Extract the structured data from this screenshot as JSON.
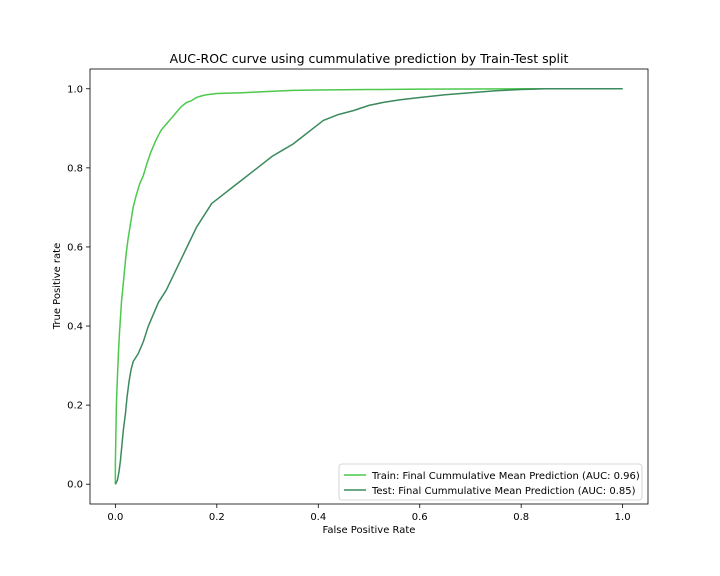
{
  "chart_data": {
    "type": "line",
    "title": "AUC-ROC curve using cummulative prediction by Train-Test split",
    "xlabel": "False Positive Rate",
    "ylabel": "True Positive rate",
    "xlim": [
      -0.05,
      1.05
    ],
    "ylim": [
      -0.05,
      1.05
    ],
    "xticks": [
      0.0,
      0.2,
      0.4,
      0.6,
      0.8,
      1.0
    ],
    "yticks": [
      0.0,
      0.2,
      0.4,
      0.6,
      0.8,
      1.0
    ],
    "xtick_labels": [
      "0.0",
      "0.2",
      "0.4",
      "0.6",
      "0.8",
      "1.0"
    ],
    "ytick_labels": [
      "0.0",
      "0.2",
      "0.4",
      "0.6",
      "0.8",
      "1.0"
    ],
    "grid": false,
    "legend_position": "lower-right",
    "series": [
      {
        "name": "Train: Final Cummulative Mean Prediction (AUC: 0.96)",
        "color": "#4cc94c",
        "points": [
          [
            0.0,
            0.0
          ],
          [
            0.0,
            0.05
          ],
          [
            0.002,
            0.2
          ],
          [
            0.004,
            0.27
          ],
          [
            0.006,
            0.33
          ],
          [
            0.008,
            0.38
          ],
          [
            0.01,
            0.42
          ],
          [
            0.012,
            0.46
          ],
          [
            0.015,
            0.5
          ],
          [
            0.018,
            0.54
          ],
          [
            0.021,
            0.58
          ],
          [
            0.025,
            0.62
          ],
          [
            0.03,
            0.66
          ],
          [
            0.035,
            0.7
          ],
          [
            0.041,
            0.73
          ],
          [
            0.048,
            0.76
          ],
          [
            0.055,
            0.78
          ],
          [
            0.062,
            0.81
          ],
          [
            0.07,
            0.84
          ],
          [
            0.08,
            0.87
          ],
          [
            0.09,
            0.895
          ],
          [
            0.1,
            0.91
          ],
          [
            0.11,
            0.925
          ],
          [
            0.12,
            0.94
          ],
          [
            0.13,
            0.955
          ],
          [
            0.14,
            0.965
          ],
          [
            0.15,
            0.97
          ],
          [
            0.16,
            0.978
          ],
          [
            0.17,
            0.982
          ],
          [
            0.18,
            0.985
          ],
          [
            0.2,
            0.988
          ],
          [
            0.25,
            0.99
          ],
          [
            0.3,
            0.993
          ],
          [
            0.35,
            0.996
          ],
          [
            0.4,
            0.997
          ],
          [
            0.5,
            0.998
          ],
          [
            0.6,
            0.999
          ],
          [
            0.8,
            1.0
          ],
          [
            1.0,
            1.0
          ]
        ]
      },
      {
        "name": "Test: Final Cummulative Mean Prediction (AUC: 0.85)",
        "color": "#3b8a5e",
        "points": [
          [
            0.0,
            0.0
          ],
          [
            0.004,
            0.01
          ],
          [
            0.007,
            0.03
          ],
          [
            0.01,
            0.06
          ],
          [
            0.013,
            0.1
          ],
          [
            0.016,
            0.14
          ],
          [
            0.02,
            0.18
          ],
          [
            0.023,
            0.22
          ],
          [
            0.027,
            0.26
          ],
          [
            0.031,
            0.29
          ],
          [
            0.035,
            0.31
          ],
          [
            0.045,
            0.33
          ],
          [
            0.055,
            0.36
          ],
          [
            0.065,
            0.4
          ],
          [
            0.075,
            0.43
          ],
          [
            0.085,
            0.46
          ],
          [
            0.1,
            0.49
          ],
          [
            0.115,
            0.53
          ],
          [
            0.13,
            0.57
          ],
          [
            0.145,
            0.61
          ],
          [
            0.16,
            0.65
          ],
          [
            0.175,
            0.68
          ],
          [
            0.19,
            0.71
          ],
          [
            0.21,
            0.73
          ],
          [
            0.23,
            0.75
          ],
          [
            0.25,
            0.77
          ],
          [
            0.27,
            0.79
          ],
          [
            0.29,
            0.81
          ],
          [
            0.31,
            0.83
          ],
          [
            0.33,
            0.845
          ],
          [
            0.35,
            0.86
          ],
          [
            0.37,
            0.88
          ],
          [
            0.39,
            0.9
          ],
          [
            0.41,
            0.92
          ],
          [
            0.44,
            0.935
          ],
          [
            0.47,
            0.945
          ],
          [
            0.5,
            0.958
          ],
          [
            0.53,
            0.966
          ],
          [
            0.56,
            0.972
          ],
          [
            0.6,
            0.978
          ],
          [
            0.65,
            0.985
          ],
          [
            0.7,
            0.99
          ],
          [
            0.75,
            0.995
          ],
          [
            0.8,
            0.998
          ],
          [
            0.85,
            1.0
          ],
          [
            1.0,
            1.0
          ]
        ]
      }
    ]
  }
}
